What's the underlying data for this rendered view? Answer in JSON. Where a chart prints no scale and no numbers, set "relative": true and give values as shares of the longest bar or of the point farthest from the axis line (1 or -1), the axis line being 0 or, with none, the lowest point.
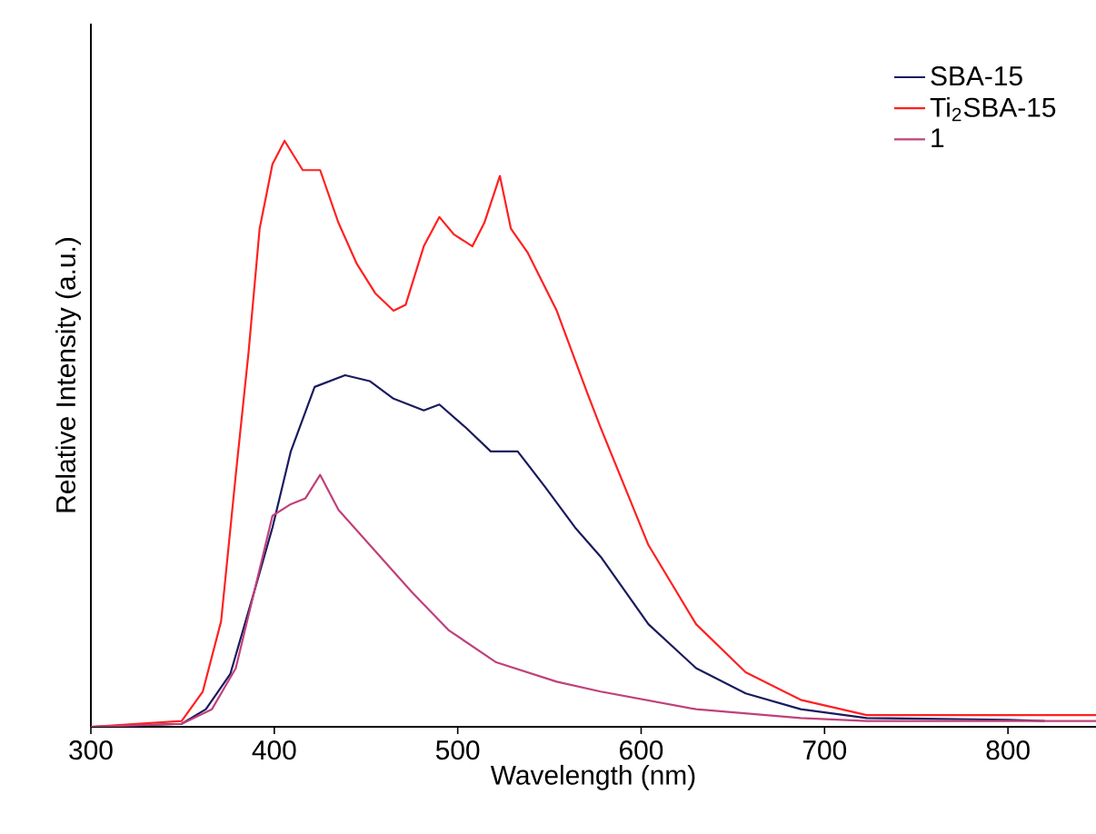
{
  "chart_data": {
    "type": "line",
    "relative": true,
    "xlabel": "Wavelength (nm)",
    "ylabel": "Relative Intensity (a.u.)",
    "xlim": [
      300,
      848
    ],
    "xticks": [
      300,
      400,
      500,
      600,
      700,
      800
    ],
    "legend": "top right",
    "grid": false,
    "marker": "none",
    "line_style": "solid",
    "series": [
      {
        "name": "SBA-15",
        "color": "#1a1a5e",
        "x": [
          300,
          349.5,
          362.7,
          376,
          389,
          399,
          409,
          422,
          438.6,
          452,
          465,
          481.5,
          490,
          504.6,
          518,
          532.7,
          547.5,
          564,
          578,
          604,
          630,
          657,
          687,
          723,
          800,
          820
        ],
        "values": [
          0,
          0.005,
          0.03,
          0.09,
          0.23,
          0.34,
          0.47,
          0.58,
          0.6,
          0.59,
          0.56,
          0.54,
          0.55,
          0.51,
          0.47,
          0.47,
          0.41,
          0.34,
          0.29,
          0.175,
          0.1,
          0.057,
          0.03,
          0.015,
          0.012,
          0.01
        ]
      },
      {
        "name": "Ti$_{2}$SBA-15",
        "color": "#ff2020",
        "x": [
          300,
          349.5,
          361,
          371,
          379,
          386,
          392,
          399,
          405.6,
          415.5,
          425,
          435,
          445,
          455,
          465,
          471.6,
          481.5,
          490,
          498,
          508,
          514.5,
          523,
          529,
          538,
          554,
          570.6,
          578,
          604,
          630,
          657,
          687,
          723,
          800,
          848
        ],
        "values": [
          0,
          0.01,
          0.06,
          0.18,
          0.43,
          0.64,
          0.85,
          0.96,
          1,
          0.95,
          0.95,
          0.86,
          0.79,
          0.74,
          0.71,
          0.72,
          0.82,
          0.87,
          0.84,
          0.82,
          0.86,
          0.94,
          0.85,
          0.81,
          0.71,
          0.57,
          0.51,
          0.31,
          0.175,
          0.093,
          0.046,
          0.02,
          0.02,
          0.02
        ]
      },
      {
        "name": "1",
        "color": "#c0407a",
        "x": [
          300,
          349.5,
          366,
          379,
          389,
          399,
          409,
          417,
          425,
          435,
          455,
          475,
          495,
          521,
          554,
          578,
          630,
          687,
          723,
          800,
          848
        ],
        "values": [
          0,
          0.005,
          0.03,
          0.1,
          0.23,
          0.36,
          0.38,
          0.39,
          0.43,
          0.37,
          0.3,
          0.23,
          0.165,
          0.11,
          0.077,
          0.06,
          0.03,
          0.015,
          0.01,
          0.01,
          0.01
        ]
      }
    ]
  }
}
